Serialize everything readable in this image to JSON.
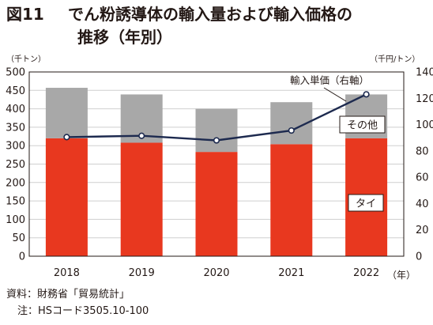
{
  "figure": {
    "label": "図11",
    "title_line1": "でん粉誘導体の輸入量および輸入価格の",
    "title_line2": "推移（年別）"
  },
  "chart_data": {
    "type": "bar",
    "stacked": true,
    "categories": [
      "2018",
      "2019",
      "2020",
      "2021",
      "2022"
    ],
    "series": [
      {
        "name": "タイ",
        "kind": "bar",
        "axis": "left",
        "color": "#e8381f",
        "values": [
          320,
          308,
          283,
          304,
          320
        ]
      },
      {
        "name": "その他",
        "kind": "bar",
        "axis": "left",
        "color": "#a8a8a8",
        "values": [
          137,
          131,
          117,
          114,
          119
        ]
      },
      {
        "name": "輸入単価（右軸）",
        "kind": "line",
        "axis": "right",
        "color": "#1d2a4f",
        "values": [
          90.5,
          91.5,
          88,
          95.5,
          123
        ]
      }
    ],
    "y_left": {
      "unit": "（千トン）",
      "min": 0,
      "max": 500,
      "step": 50,
      "ticks": [
        "0",
        "50",
        "100",
        "150",
        "200",
        "250",
        "300",
        "350",
        "400",
        "450",
        "500"
      ]
    },
    "y_right": {
      "unit": "（千円/トン）",
      "min": 0,
      "max": 140,
      "step": 20,
      "ticks": [
        "0",
        "20",
        "40",
        "60",
        "80",
        "100",
        "120",
        "140"
      ]
    },
    "x_unit": "（年）",
    "grid": true,
    "labels": {
      "thai": "タイ",
      "other": "その他",
      "price": "輸入単価（右軸）"
    }
  },
  "footer": {
    "source": "資料：財務省「貿易統計」",
    "note": "注：HSコード3505.10-100"
  }
}
